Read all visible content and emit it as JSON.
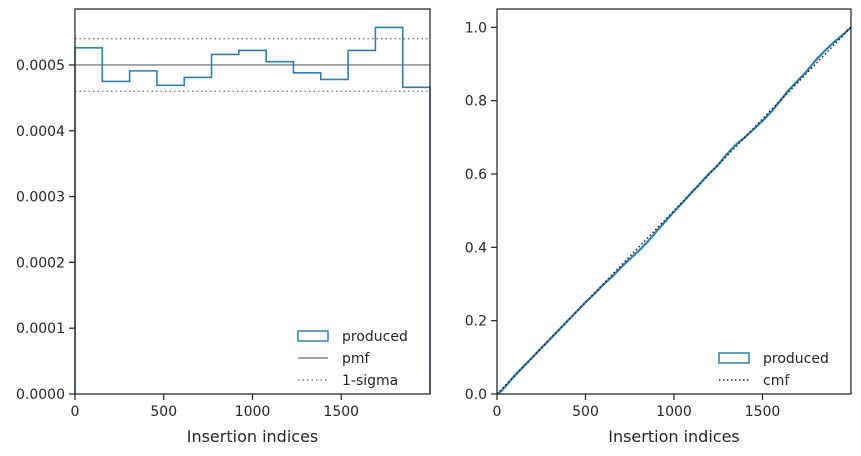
{
  "chart_data": [
    {
      "type": "histogram-step",
      "xlabel": "Insertion indices",
      "ylabel": "",
      "xlim": [
        0,
        2000
      ],
      "ylim": [
        0,
        0.000585
      ],
      "xticks": [
        0,
        500,
        1000,
        1500
      ],
      "xtick_labels": [
        "0",
        "500",
        "1000",
        "1500"
      ],
      "yticks": [
        0,
        0.0001,
        0.0002,
        0.0003,
        0.0004,
        0.0005
      ],
      "ytick_labels": [
        "0.0000",
        "0.0001",
        "0.0002",
        "0.0003",
        "0.0004",
        "0.0005"
      ],
      "bin_edges": [
        0,
        153.8,
        307.7,
        461.5,
        615.4,
        769.2,
        923.1,
        1076.9,
        1230.8,
        1384.6,
        1538.5,
        1692.3,
        1846.2,
        2000
      ],
      "series": [
        {
          "name": "produced",
          "color": "#2e7fb0",
          "values": [
            0.000526,
            0.000475,
            0.000491,
            0.000469,
            0.000481,
            0.000516,
            0.000522,
            0.000505,
            0.000488,
            0.000478,
            0.000522,
            0.000557,
            0.000466
          ]
        }
      ],
      "reference_lines": [
        {
          "name": "pmf",
          "y": 0.0005,
          "color": "#808080",
          "style": "solid"
        },
        {
          "name": "1-sigma",
          "y": 0.00054,
          "color": "#808080",
          "style": "dotted"
        },
        {
          "y": 0.00046,
          "color": "#808080",
          "style": "dotted"
        }
      ],
      "legend": {
        "position": "lower-right",
        "entries": [
          "produced",
          "pmf",
          "1-sigma"
        ]
      }
    },
    {
      "type": "line",
      "xlabel": "Insertion indices",
      "ylabel": "",
      "xlim": [
        0,
        2000
      ],
      "ylim": [
        0,
        1.05
      ],
      "xticks": [
        0,
        500,
        1000,
        1500
      ],
      "xtick_labels": [
        "0",
        "500",
        "1000",
        "1500"
      ],
      "yticks": [
        0,
        0.2,
        0.4,
        0.6,
        0.8,
        1.0
      ],
      "ytick_labels": [
        "0.0",
        "0.2",
        "0.4",
        "0.6",
        "0.8",
        "1.0"
      ],
      "series": [
        {
          "name": "produced",
          "color": "#2e7fb0",
          "style": "solid",
          "x": [
            0,
            20,
            50,
            100,
            150,
            200,
            250,
            300,
            350,
            400,
            450,
            500,
            550,
            600,
            650,
            700,
            750,
            800,
            850,
            900,
            950,
            1000,
            1050,
            1100,
            1150,
            1200,
            1250,
            1300,
            1350,
            1400,
            1450,
            1500,
            1550,
            1600,
            1650,
            1700,
            1750,
            1800,
            1850,
            1900,
            1950,
            2000
          ],
          "y": [
            0,
            0.006,
            0.022,
            0.05,
            0.075,
            0.1,
            0.125,
            0.15,
            0.175,
            0.2,
            0.225,
            0.25,
            0.273,
            0.298,
            0.32,
            0.345,
            0.368,
            0.39,
            0.415,
            0.443,
            0.47,
            0.497,
            0.523,
            0.55,
            0.575,
            0.602,
            0.625,
            0.655,
            0.68,
            0.7,
            0.722,
            0.745,
            0.77,
            0.8,
            0.83,
            0.855,
            0.88,
            0.91,
            0.935,
            0.958,
            0.978,
            1.0
          ]
        },
        {
          "name": "cmf",
          "color": "#1a1a1a",
          "style": "dotted",
          "x": [
            0,
            2000
          ],
          "y": [
            0,
            1.0
          ]
        }
      ],
      "legend": {
        "position": "lower-right",
        "entries": [
          "produced",
          "cmf"
        ]
      }
    }
  ]
}
